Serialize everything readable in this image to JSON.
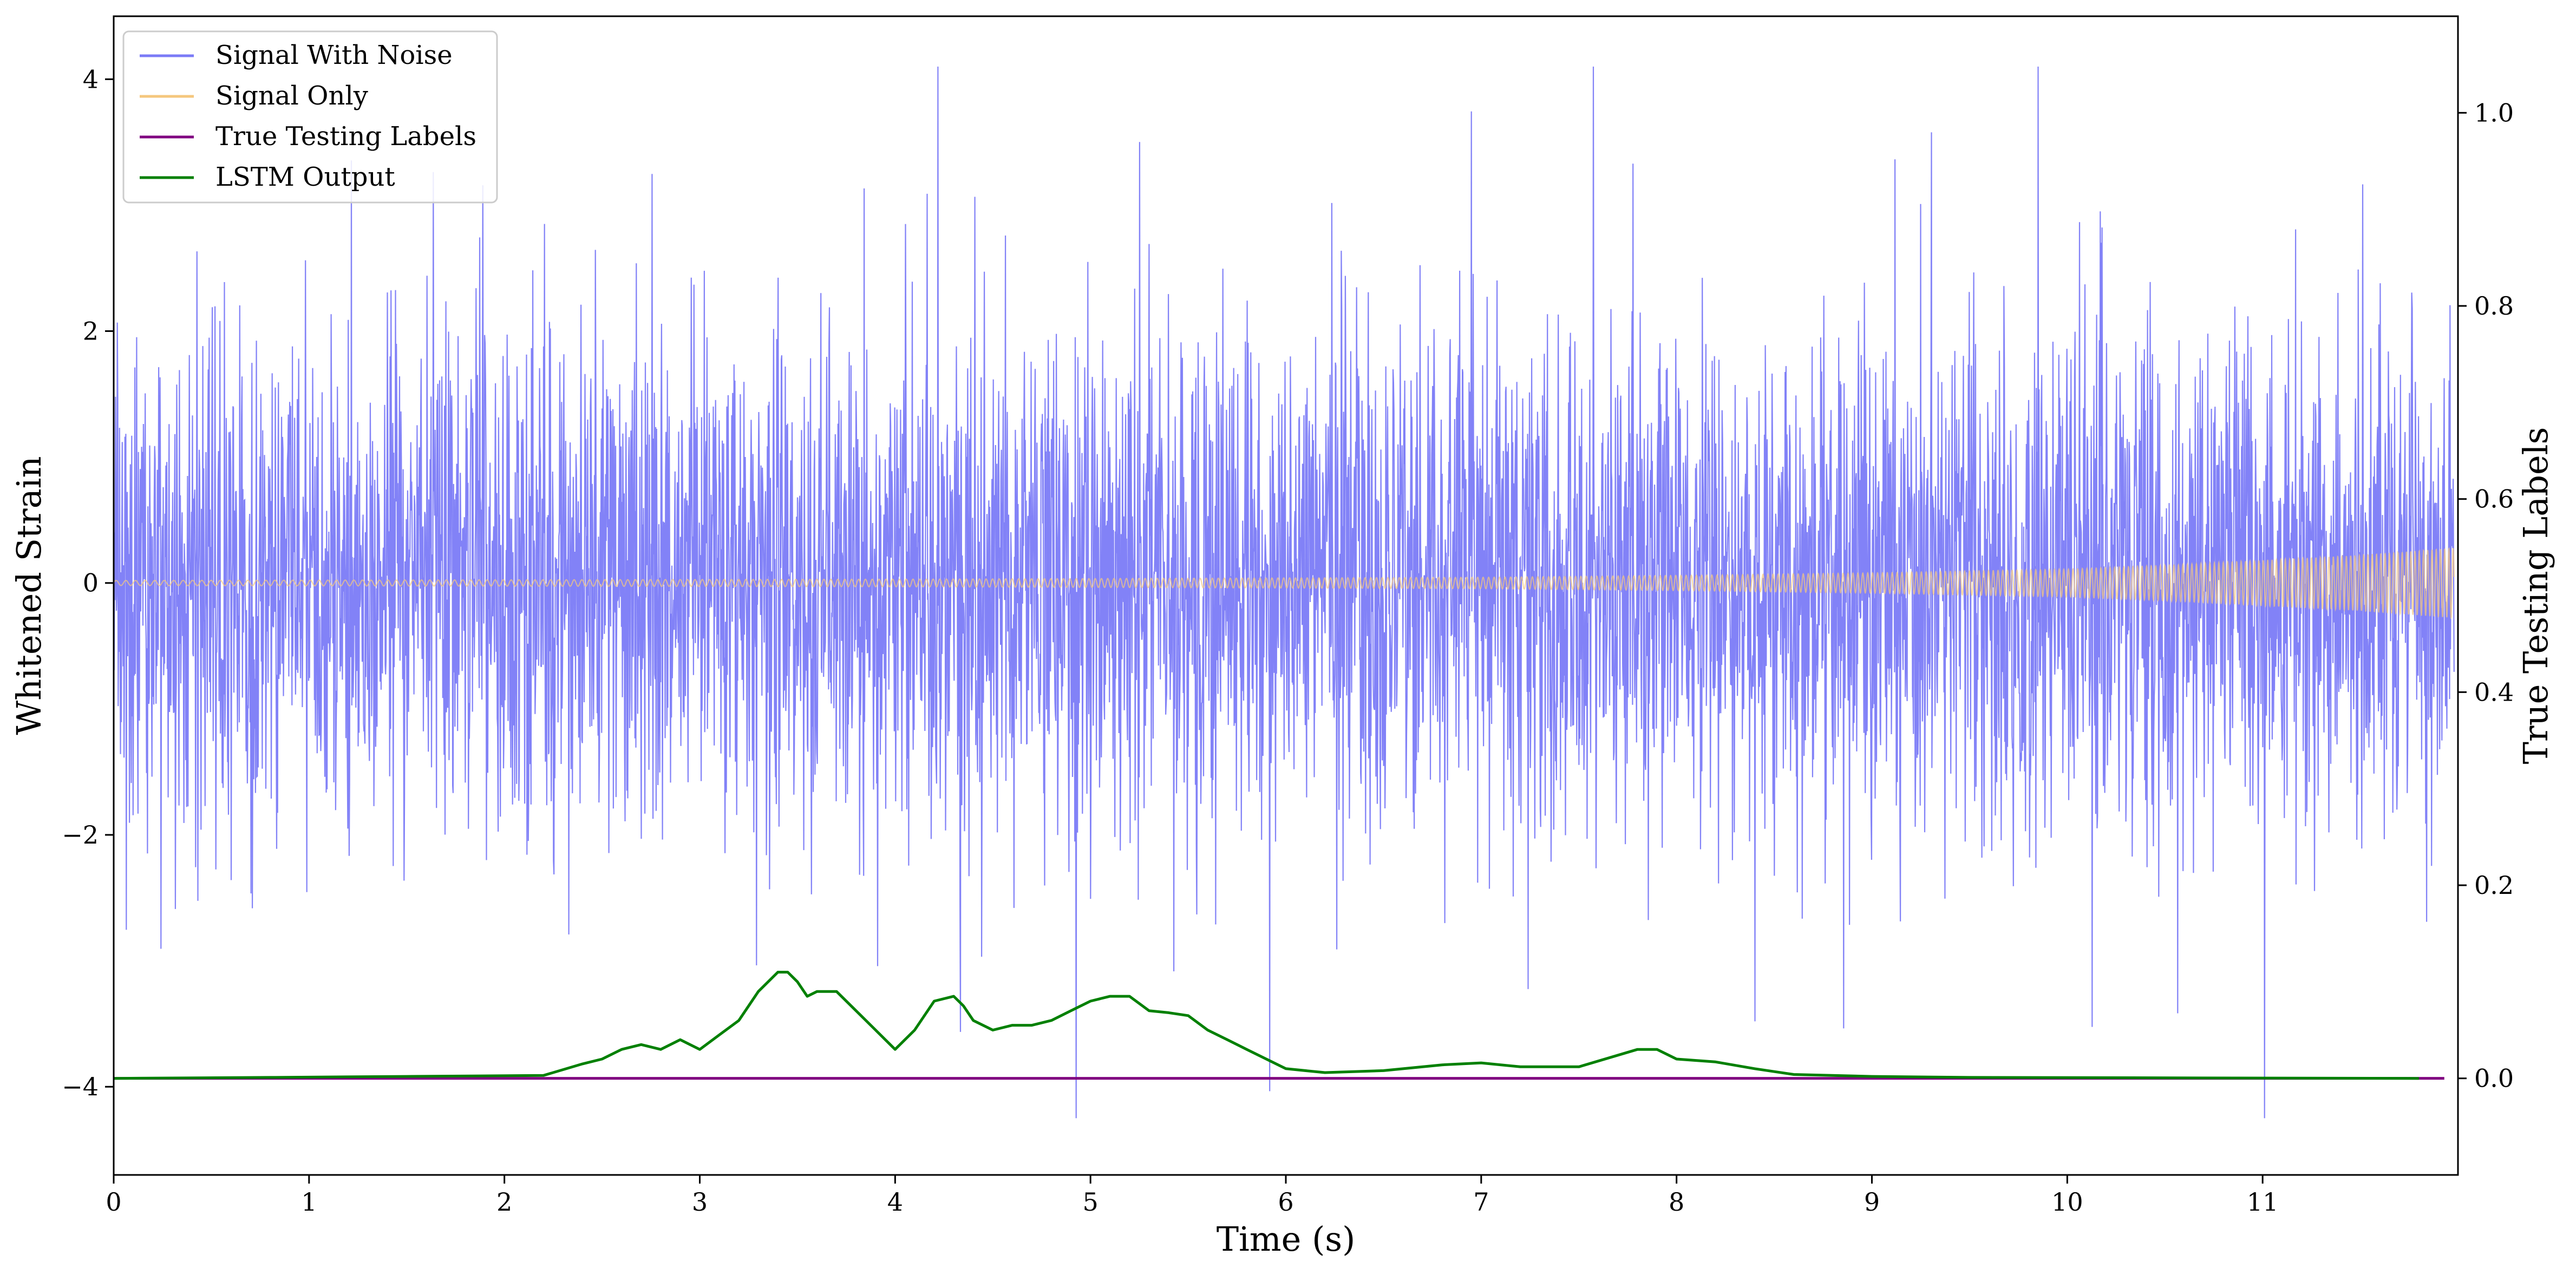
{
  "chart_data": {
    "type": "line",
    "title": "",
    "xlabel": "Time (s)",
    "ylabel": "Whitened Strain",
    "ylabel_right": "True Testing Labels",
    "xlim": [
      0,
      12
    ],
    "ylim": [
      -4.7,
      4.5
    ],
    "ylim_right": [
      -0.1,
      1.1
    ],
    "x_ticks": [
      "0",
      "1",
      "2",
      "3",
      "4",
      "5",
      "6",
      "7",
      "8",
      "9",
      "10",
      "11"
    ],
    "y_ticks": [
      "4",
      "2",
      "0",
      "−2",
      "−4"
    ],
    "y_ticks_right": [
      "1.0",
      "0.8",
      "0.6",
      "0.4",
      "0.2",
      "0.0"
    ],
    "grid": false,
    "legend_position": "top-left",
    "series": [
      {
        "name": "Signal With Noise",
        "axis": "left",
        "color": "#7b7bf7",
        "description_values": {
          "typical_amplitude": 1.2,
          "peak_max": 4.1,
          "peak_min": -4.25
        }
      },
      {
        "name": "Signal Only",
        "axis": "left",
        "color": "#f5c77e",
        "envelope_x": [
          0,
          2,
          4,
          6,
          7,
          8,
          9,
          10,
          10.5,
          11,
          11.5,
          12
        ],
        "envelope_amp": [
          0.02,
          0.025,
          0.03,
          0.04,
          0.045,
          0.06,
          0.08,
          0.11,
          0.14,
          0.18,
          0.22,
          0.28
        ]
      },
      {
        "name": "True Testing Labels",
        "axis": "right",
        "color": "#800080",
        "x": [
          0,
          12
        ],
        "y": [
          0.0,
          0.0
        ]
      },
      {
        "name": "LSTM Output",
        "axis": "right",
        "color": "#008000",
        "x": [
          0,
          0.8,
          1.5,
          2.2,
          2.4,
          2.5,
          2.6,
          2.7,
          2.8,
          2.9,
          3.0,
          3.1,
          3.2,
          3.3,
          3.4,
          3.45,
          3.5,
          3.55,
          3.6,
          3.7,
          3.8,
          3.9,
          4.0,
          4.1,
          4.2,
          4.3,
          4.35,
          4.4,
          4.5,
          4.6,
          4.7,
          4.8,
          4.9,
          5.0,
          5.1,
          5.2,
          5.3,
          5.4,
          5.5,
          5.6,
          5.7,
          5.8,
          6.0,
          6.2,
          6.5,
          6.8,
          7.0,
          7.2,
          7.5,
          7.8,
          7.9,
          8.0,
          8.2,
          8.4,
          8.6,
          9.0,
          9.5,
          11.8
        ],
        "y": [
          0.0,
          0.001,
          0.002,
          0.003,
          0.015,
          0.02,
          0.03,
          0.035,
          0.03,
          0.04,
          0.03,
          0.045,
          0.06,
          0.09,
          0.11,
          0.11,
          0.1,
          0.085,
          0.09,
          0.09,
          0.07,
          0.05,
          0.03,
          0.05,
          0.08,
          0.085,
          0.075,
          0.06,
          0.05,
          0.055,
          0.055,
          0.06,
          0.07,
          0.08,
          0.085,
          0.085,
          0.07,
          0.068,
          0.065,
          0.05,
          0.04,
          0.03,
          0.01,
          0.006,
          0.008,
          0.014,
          0.016,
          0.012,
          0.012,
          0.03,
          0.03,
          0.02,
          0.017,
          0.01,
          0.004,
          0.002,
          0.001,
          0.0
        ]
      }
    ]
  }
}
